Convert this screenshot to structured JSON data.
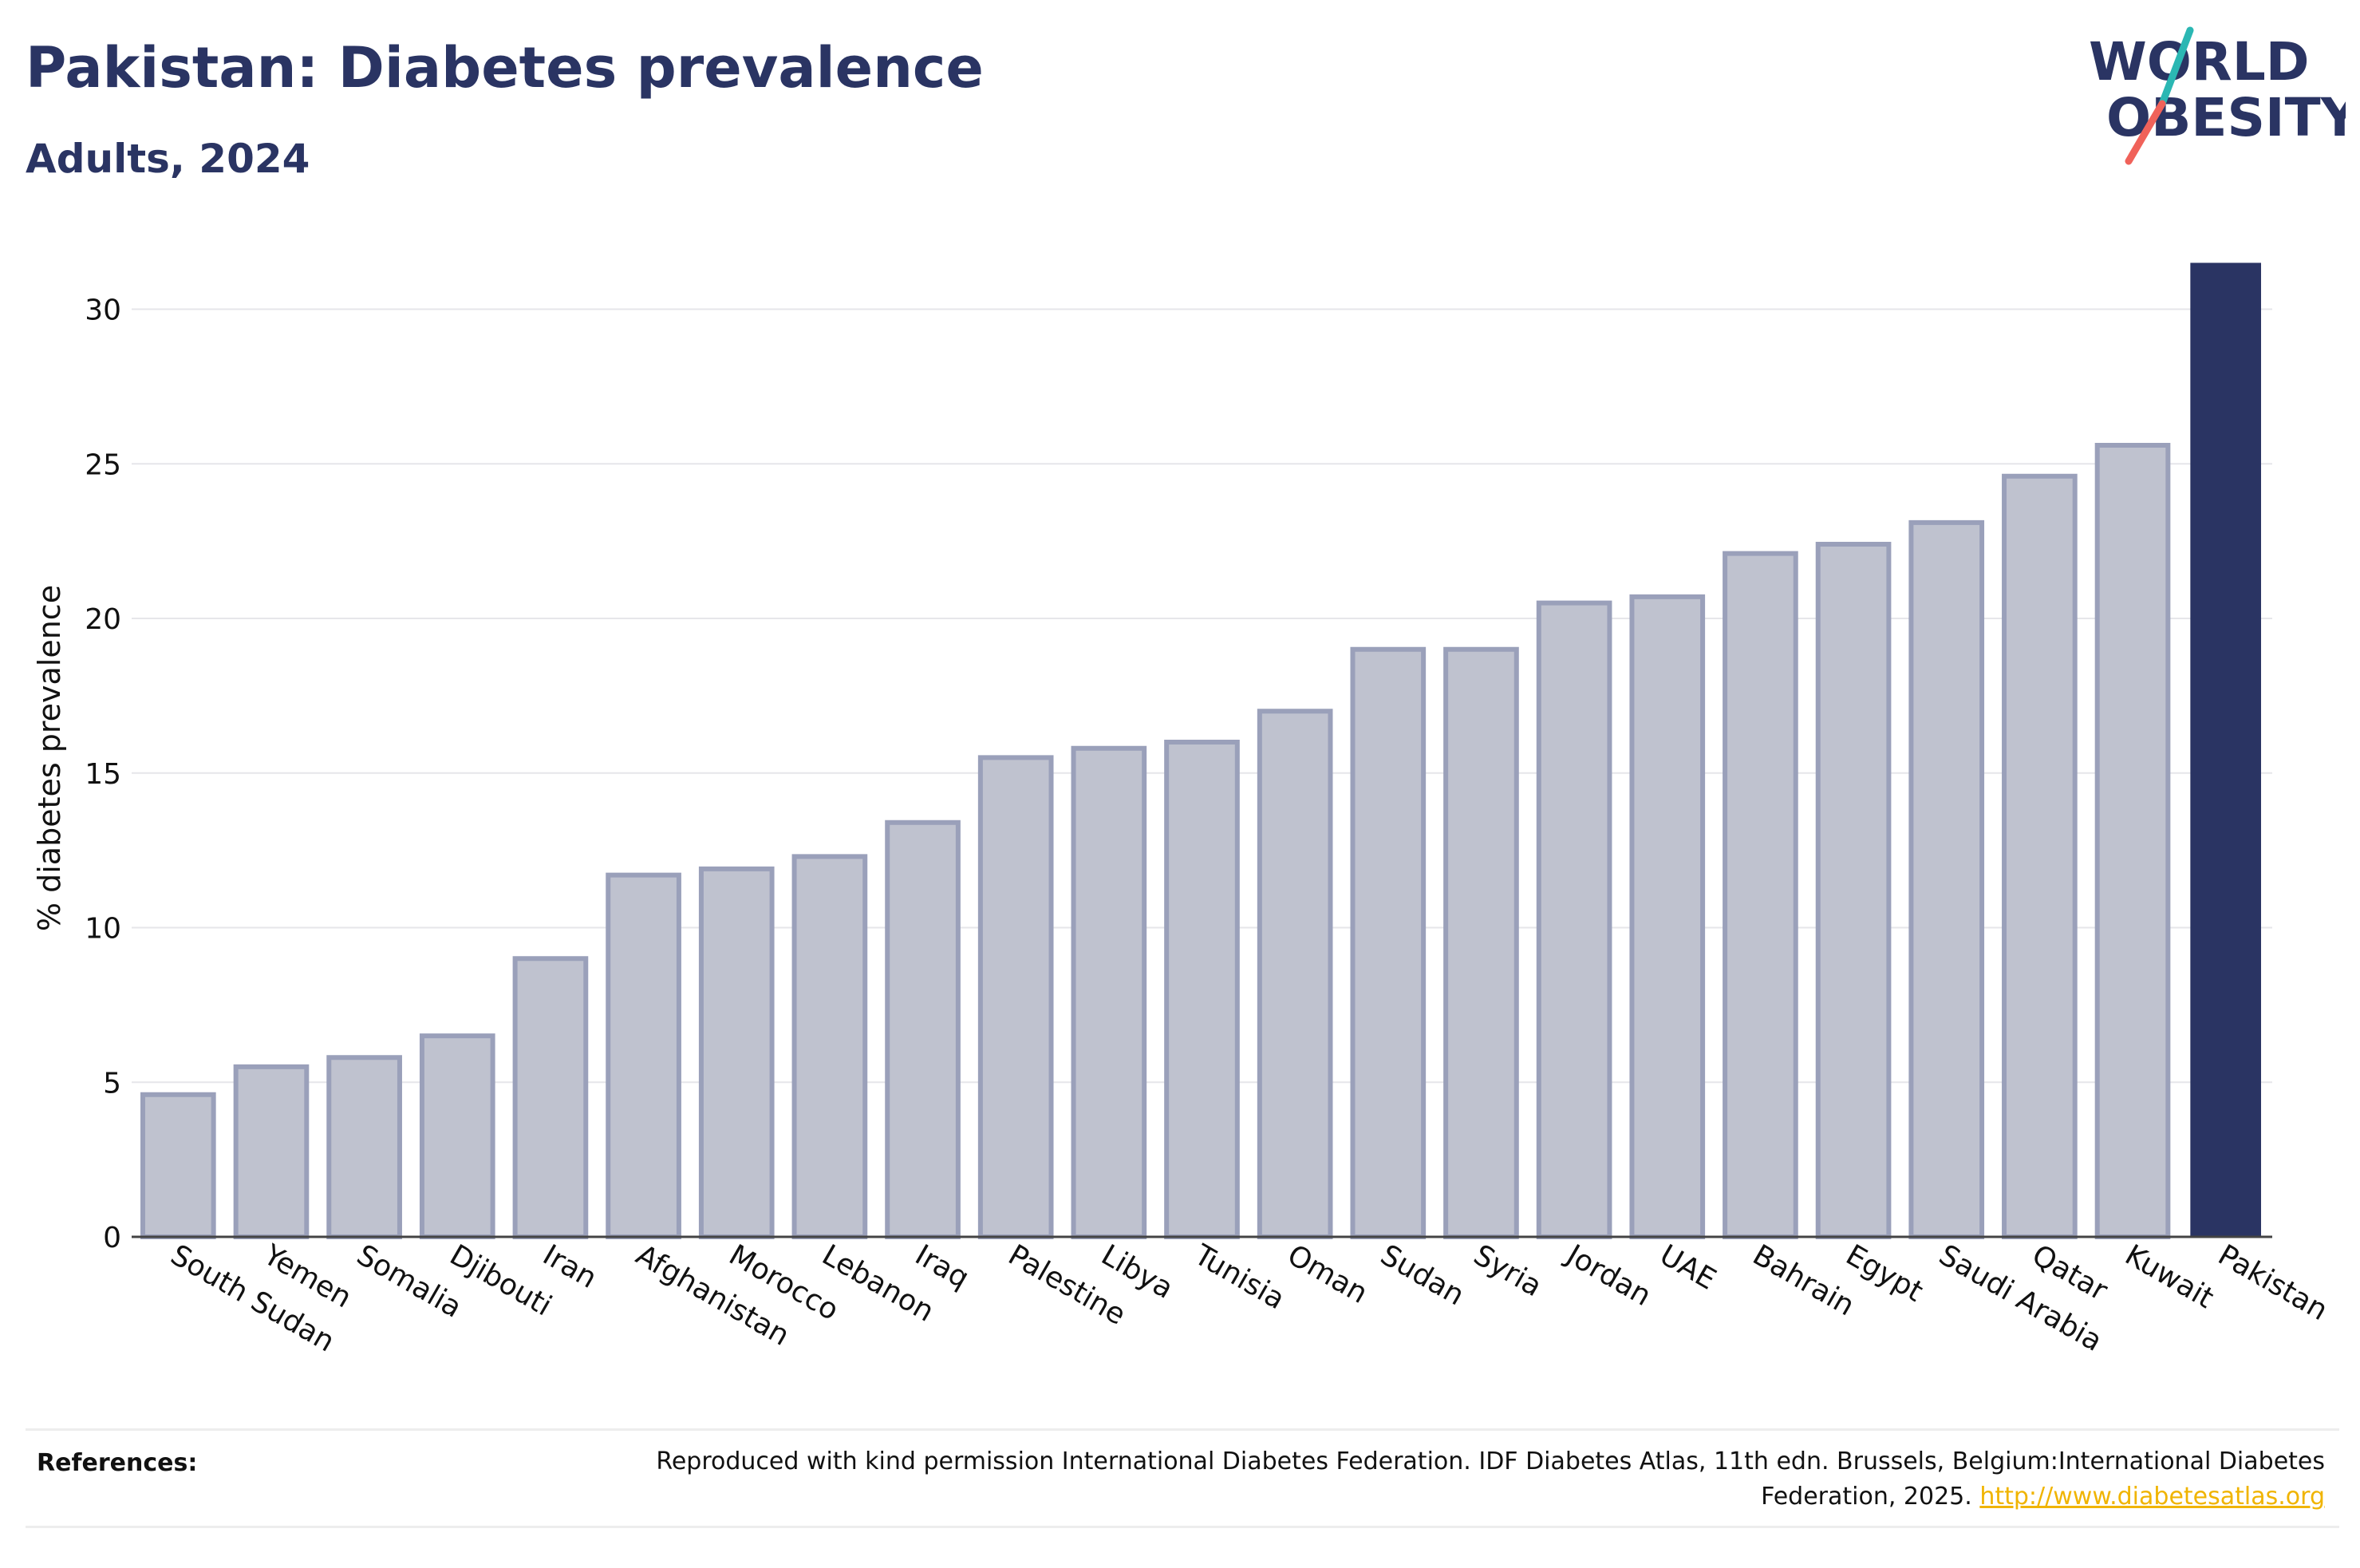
{
  "header": {
    "title": "Pakistan: Diabetes prevalence",
    "subtitle": "Adults, 2024"
  },
  "logo": {
    "line1": "WORLD",
    "line2": "OBESITY",
    "slash_colors": [
      "#2bb7b3",
      "#f0625a"
    ]
  },
  "footer": {
    "references_label": "References:",
    "reference_text": "Reproduced with kind permission International Diabetes Federation. IDF Diabetes Atlas, 11th edn. Brussels, Belgium:International Diabetes Federation, 2025.",
    "reference_link": "http://www.diabetesatlas.org"
  },
  "colors": {
    "highlight_bar": "#2a3463",
    "other_bar_fill": "#bfc2cf",
    "other_bar_stroke": "#9aa0ba",
    "link": "#f0b400"
  },
  "chart_data": {
    "type": "bar",
    "title": "Pakistan: Diabetes prevalence",
    "subtitle": "Adults, 2024",
    "ylabel": "% diabetes prevalence",
    "xlabel": "",
    "ylim": [
      0,
      32
    ],
    "yticks": [
      0,
      5,
      10,
      15,
      20,
      25,
      30
    ],
    "grid": true,
    "highlight": "Pakistan",
    "categories": [
      "South Sudan",
      "Yemen",
      "Somalia",
      "Djibouti",
      "Iran",
      "Afghanistan",
      "Morocco",
      "Lebanon",
      "Iraq",
      "Palestine",
      "Libya",
      "Tunisia",
      "Oman",
      "Sudan",
      "Syria",
      "Jordan",
      "UAE",
      "Bahrain",
      "Egypt",
      "Saudi Arabia",
      "Qatar",
      "Kuwait",
      "Pakistan"
    ],
    "values": [
      4.6,
      5.5,
      5.8,
      6.5,
      9.0,
      11.7,
      11.9,
      12.3,
      13.4,
      15.5,
      15.8,
      16.0,
      17.0,
      19.0,
      19.0,
      20.5,
      20.7,
      22.1,
      22.4,
      23.1,
      24.6,
      25.6,
      31.5
    ]
  }
}
